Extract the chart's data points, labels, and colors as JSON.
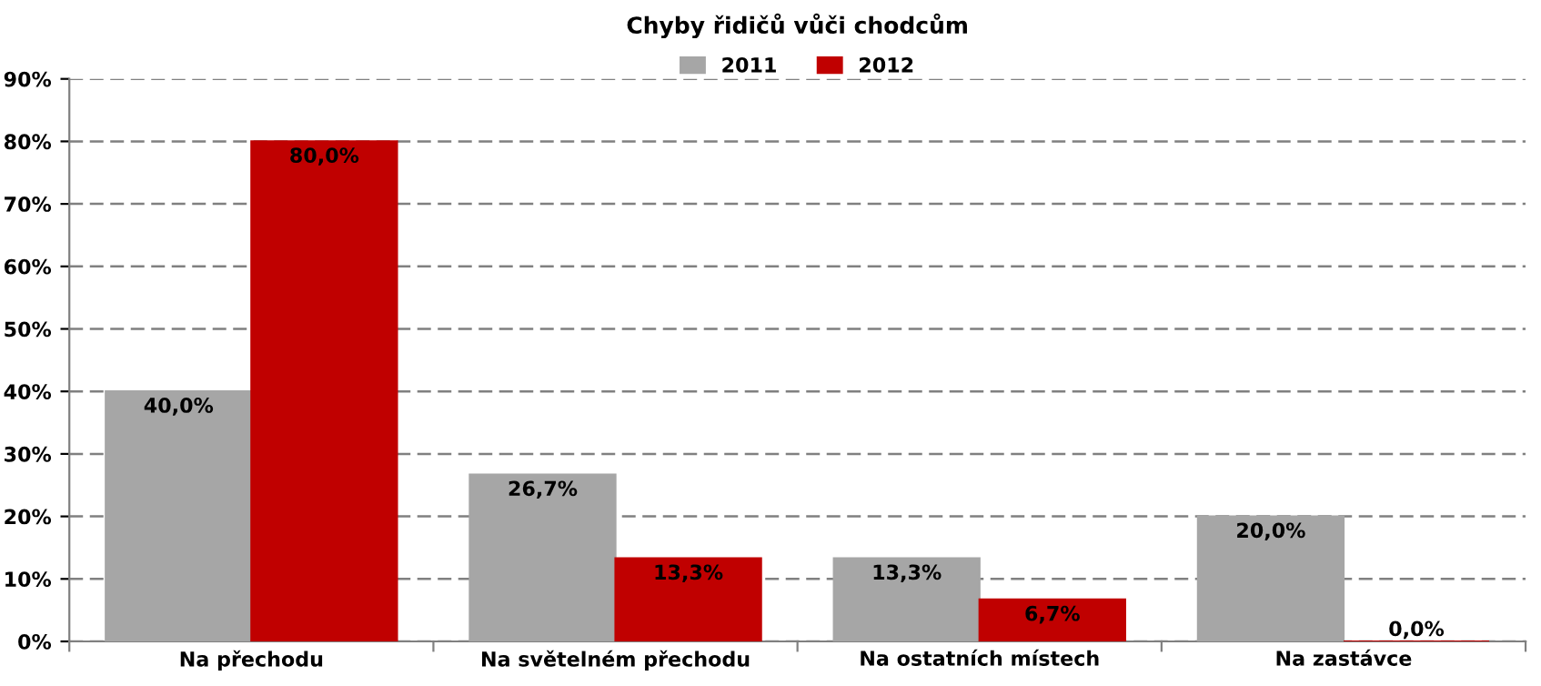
{
  "chart_data": {
    "type": "bar",
    "title": "Chyby řidičů vůči chodcům",
    "categories": [
      "Na přechodu",
      "Na světelném přechodu",
      "Na ostatních místech",
      "Na zastávce"
    ],
    "series": [
      {
        "name": "2011",
        "color": "#a6a6a6",
        "values": [
          40.0,
          26.7,
          13.3,
          20.0
        ],
        "value_labels": [
          "40,0%",
          "26,7%",
          "13,3%",
          "20,0%"
        ]
      },
      {
        "name": "2012",
        "color": "#c00000",
        "values": [
          80.0,
          13.3,
          6.7,
          0.0
        ],
        "value_labels": [
          "80,0%",
          "13,3%",
          "6,7%",
          "0,0%"
        ]
      }
    ],
    "ylim": [
      0,
      90
    ],
    "yticks": [
      {
        "value": 0,
        "label": "0%"
      },
      {
        "value": 10,
        "label": "10%"
      },
      {
        "value": 20,
        "label": "20%"
      },
      {
        "value": 30,
        "label": "30%"
      },
      {
        "value": 40,
        "label": "40%"
      },
      {
        "value": 50,
        "label": "50%"
      },
      {
        "value": 60,
        "label": "60%"
      },
      {
        "value": 70,
        "label": "70%"
      },
      {
        "value": 80,
        "label": "80%"
      },
      {
        "value": 90,
        "label": "90%"
      }
    ],
    "grid": "y",
    "legend": "top",
    "line_style": "dashed"
  }
}
